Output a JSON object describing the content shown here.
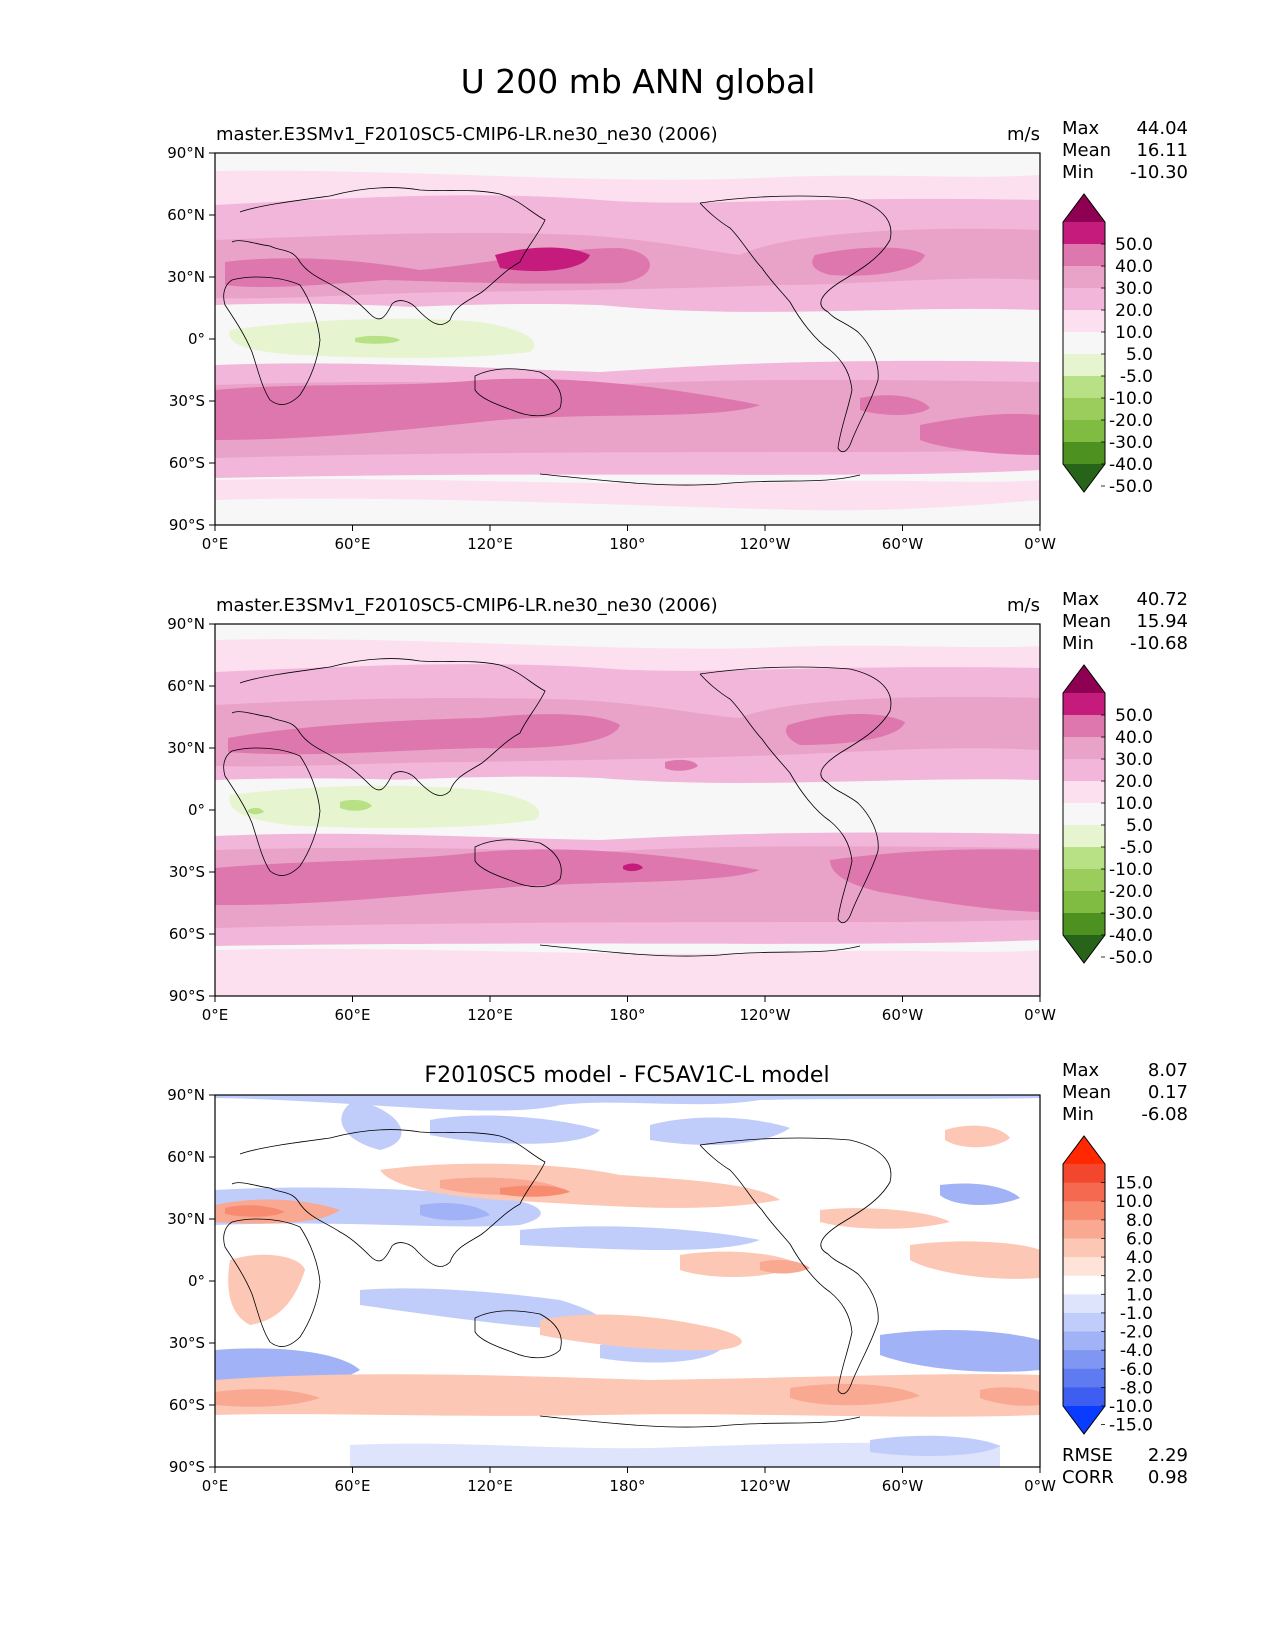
{
  "figure": {
    "title": "U 200 mb ANN global"
  },
  "axes": {
    "x_ticks": [
      "0°E",
      "60°E",
      "120°E",
      "180°",
      "120°W",
      "60°W",
      "0°W"
    ],
    "y_ticks": [
      "90°N",
      "60°N",
      "30°N",
      "0°",
      "30°S",
      "60°S",
      "90°S"
    ]
  },
  "chart_data": [
    {
      "type": "heatmap",
      "title_left": "master.E3SMv1_F2010SC5-CMIP6-LR.ne30_ne30 (2006)",
      "units": "m/s",
      "xlim": [
        0,
        360
      ],
      "ylim": [
        -90,
        90
      ],
      "stats": [
        {
          "label": "Max",
          "value": "44.04"
        },
        {
          "label": "Mean",
          "value": "16.11"
        },
        {
          "label": "Min",
          "value": "-10.30"
        }
      ],
      "colorbar": {
        "levels": [
          "50.0",
          "40.0",
          "30.0",
          "20.0",
          "10.0",
          "5.0",
          "-5.0",
          "-10.0",
          "-20.0",
          "-30.0",
          "-40.0",
          "-50.0"
        ],
        "colors": [
          "#8e0152",
          "#c51b7d",
          "#de77ae",
          "#e9a3c9",
          "#f1b6da",
          "#fde0ef",
          "#f7f7f7",
          "#e6f5d0",
          "#b8e186",
          "#9acd5c",
          "#7fbc41",
          "#4d9221",
          "#276419"
        ]
      },
      "jets": [
        {
          "lon": 140,
          "lat": 35,
          "speed": 42
        },
        {
          "lon": 290,
          "lat": 37,
          "speed": 36
        },
        {
          "lon": 20,
          "lat": 32,
          "speed": 33
        },
        {
          "lon": 120,
          "lat": -32,
          "speed": 34
        },
        {
          "lon": 300,
          "lat": -32,
          "speed": 35
        },
        {
          "lon": 345,
          "lat": -45,
          "speed": 35
        }
      ]
    },
    {
      "type": "heatmap",
      "title_left": "master.E3SMv1_F2010SC5-CMIP6-LR.ne30_ne30 (2006)",
      "units": "m/s",
      "xlim": [
        0,
        360
      ],
      "ylim": [
        -90,
        90
      ],
      "stats": [
        {
          "label": "Max",
          "value": "40.72"
        },
        {
          "label": "Mean",
          "value": "15.94"
        },
        {
          "label": "Min",
          "value": "-10.68"
        }
      ],
      "colorbar": {
        "levels": [
          "50.0",
          "40.0",
          "30.0",
          "20.0",
          "10.0",
          "5.0",
          "-5.0",
          "-10.0",
          "-20.0",
          "-30.0",
          "-40.0",
          "-50.0"
        ],
        "colors": [
          "#8e0152",
          "#c51b7d",
          "#de77ae",
          "#e9a3c9",
          "#f1b6da",
          "#fde0ef",
          "#f7f7f7",
          "#e6f5d0",
          "#b8e186",
          "#9acd5c",
          "#7fbc41",
          "#4d9221",
          "#276419"
        ]
      },
      "jets": [
        {
          "lon": 140,
          "lat": 33,
          "speed": 38
        },
        {
          "lon": 290,
          "lat": 36,
          "speed": 34
        },
        {
          "lon": 30,
          "lat": 30,
          "speed": 32
        },
        {
          "lon": 180,
          "lat": -30,
          "speed": 40
        },
        {
          "lon": 300,
          "lat": -30,
          "speed": 35
        },
        {
          "lon": 20,
          "lat": -40,
          "speed": 34
        }
      ]
    },
    {
      "type": "heatmap",
      "title_center": "F2010SC5 model - FC5AV1C-L model",
      "units": "",
      "xlim": [
        0,
        360
      ],
      "ylim": [
        -90,
        90
      ],
      "stats": [
        {
          "label": "Max",
          "value": "8.07"
        },
        {
          "label": "Mean",
          "value": "0.17"
        },
        {
          "label": "Min",
          "value": "-6.08"
        }
      ],
      "colorbar": {
        "levels": [
          "15.0",
          "10.0",
          "8.0",
          "6.0",
          "4.0",
          "2.0",
          "1.0",
          "-1.0",
          "-2.0",
          "-4.0",
          "-6.0",
          "-8.0",
          "-10.0",
          "-15.0"
        ],
        "colors": [
          "#ff2800",
          "#f2462d",
          "#f4694f",
          "#f78a6f",
          "#f9a891",
          "#fcc7b4",
          "#fde3d8",
          "#ffffff",
          "#dde4fc",
          "#c0ccf9",
          "#a2b2f6",
          "#7f96f3",
          "#5f7bf1",
          "#3d5ef0",
          "#0a3cff"
        ]
      },
      "metrics": [
        {
          "label": "RMSE",
          "value": "2.29"
        },
        {
          "label": "CORR",
          "value": "0.98"
        }
      ]
    }
  ]
}
